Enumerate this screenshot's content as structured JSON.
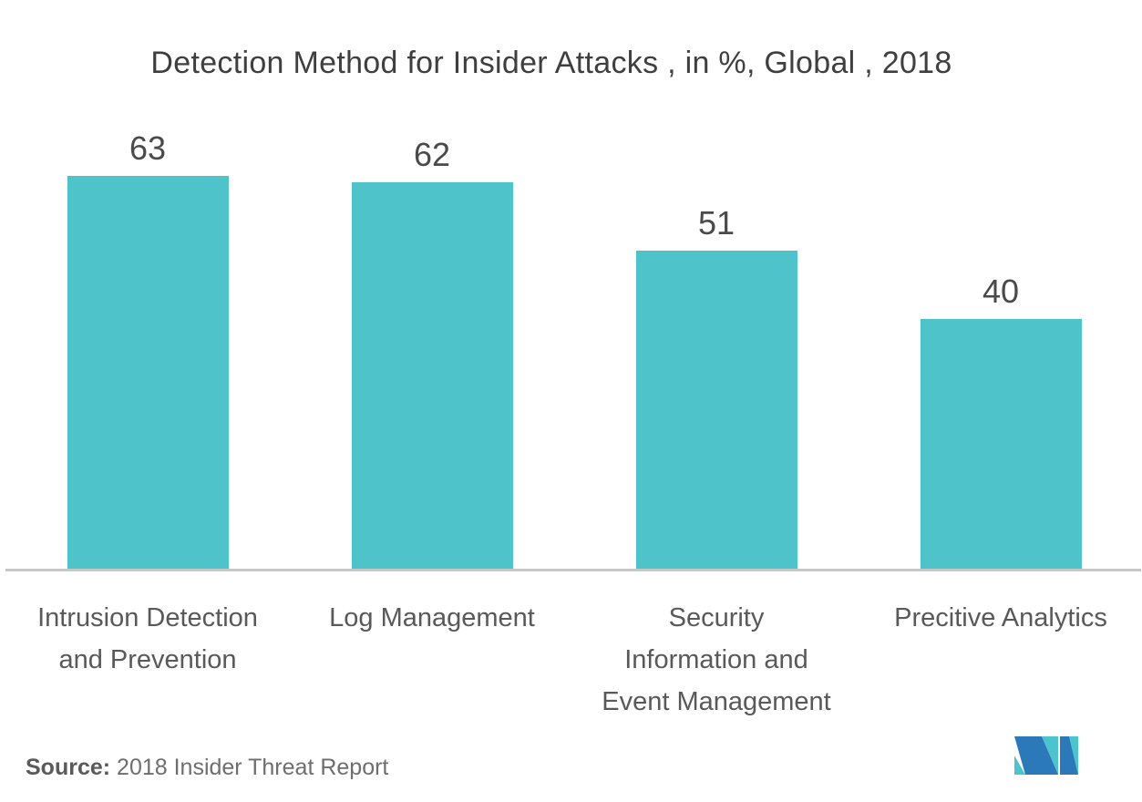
{
  "title": "Detection Method for Insider Attacks , in %, Global , 2018",
  "source": {
    "label": "Source:",
    "text": " 2018 Insider Threat Report"
  },
  "logo": {
    "name": "mordor-intelligence-logo",
    "blue": "#2b79b9",
    "teal": "#4cc4cd"
  },
  "colors": {
    "background": "#ffffff",
    "bar": "#4fc3ca",
    "title_text": "#3f3f3f",
    "value_text": "#4a4a4a",
    "category_text": "#595959",
    "axis_line": "#c7c7c7",
    "source_text": "#6e6e6e"
  },
  "chart_data": {
    "type": "bar",
    "title": "Detection Method for Insider Attacks , in %, Global , 2018",
    "categories": [
      "Intrusion Detection and Prevention",
      "Log Management",
      "Security Information and Event Management",
      "Precitive Analytics"
    ],
    "category_lines": [
      [
        "Intrusion Detection",
        "and Prevention"
      ],
      [
        "Log Management"
      ],
      [
        "Security",
        "Information and",
        "Event Management"
      ],
      [
        "Precitive Analytics"
      ]
    ],
    "values": [
      63,
      62,
      51,
      40
    ],
    "unit": "%",
    "xlabel": "",
    "ylabel": "",
    "ylim": [
      0,
      65
    ],
    "grid": false,
    "legend": null,
    "data_labels": true
  }
}
